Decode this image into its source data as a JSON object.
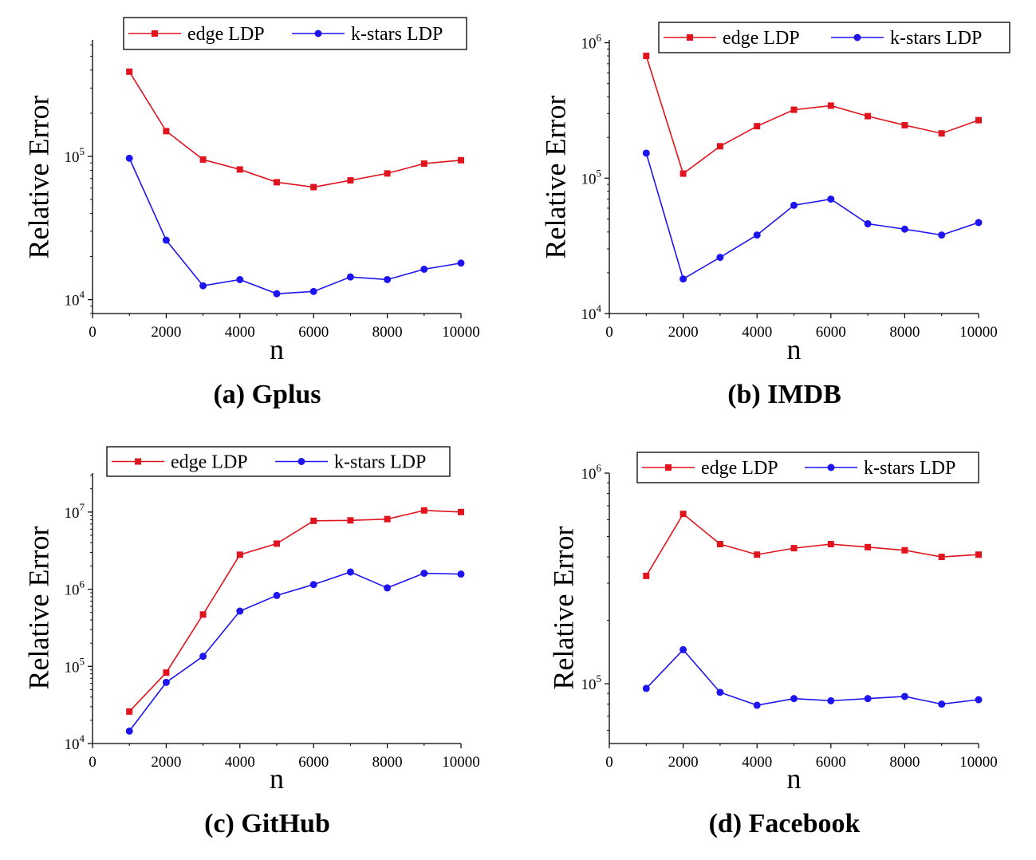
{
  "chart_data": [
    {
      "type": "line",
      "caption": "(a) Gplus",
      "xlabel": "n",
      "ylabel": "Relative Error",
      "yscale": "log",
      "xlim": [
        0,
        10000
      ],
      "ylim": [
        8000,
        650000
      ],
      "xticks": [
        0,
        2000,
        4000,
        6000,
        8000,
        10000
      ],
      "ytick_exponents": [
        4,
        5
      ],
      "grid": false,
      "legend": "top",
      "x": [
        1000,
        2000,
        3000,
        4000,
        5000,
        6000,
        7000,
        8000,
        9000,
        10000
      ],
      "series": [
        {
          "name": "edge LDP",
          "color": "#e0141e",
          "marker": "square",
          "values": [
            390000,
            150000,
            95000,
            81000,
            66000,
            61000,
            68000,
            76000,
            89000,
            94000
          ]
        },
        {
          "name": "k-stars LDP",
          "color": "#1e14f0",
          "marker": "circle",
          "values": [
            97000,
            26000,
            12500,
            13800,
            11000,
            11400,
            14400,
            13800,
            16300,
            18000
          ]
        }
      ]
    },
    {
      "type": "line",
      "caption": "(b) IMDB",
      "xlabel": "n",
      "ylabel": "Relative Error",
      "yscale": "log",
      "xlim": [
        0,
        10000
      ],
      "ylim": [
        10000,
        1050000
      ],
      "xticks": [
        0,
        2000,
        4000,
        6000,
        8000,
        10000
      ],
      "ytick_exponents": [
        4,
        5,
        6
      ],
      "grid": false,
      "legend": "top",
      "x": [
        1000,
        2000,
        3000,
        4000,
        5000,
        6000,
        7000,
        8000,
        9000,
        10000
      ],
      "series": [
        {
          "name": "edge LDP",
          "color": "#e0141e",
          "marker": "square",
          "values": [
            800000,
            108000,
            172000,
            242000,
            320000,
            343000,
            287000,
            246000,
            214000,
            268000
          ]
        },
        {
          "name": "k-stars LDP",
          "color": "#1e14f0",
          "marker": "circle",
          "values": [
            153000,
            18000,
            26000,
            38000,
            63000,
            70000,
            46000,
            42000,
            38000,
            47000
          ]
        }
      ]
    },
    {
      "type": "line",
      "caption": "(c) GitHub",
      "xlabel": "n",
      "ylabel": "Relative Error",
      "yscale": "log",
      "xlim": [
        0,
        10000
      ],
      "ylim": [
        10000,
        32000000
      ],
      "xticks": [
        0,
        2000,
        4000,
        6000,
        8000,
        10000
      ],
      "ytick_exponents": [
        4,
        5,
        6,
        7
      ],
      "grid": false,
      "legend": "top",
      "x": [
        1000,
        2000,
        3000,
        4000,
        5000,
        6000,
        7000,
        8000,
        9000,
        10000
      ],
      "series": [
        {
          "name": "edge LDP",
          "color": "#e0141e",
          "marker": "square",
          "values": [
            26000,
            83000,
            470000,
            2800000,
            3900000,
            7700000,
            7800000,
            8100000,
            10500000,
            10000000
          ]
        },
        {
          "name": "k-stars LDP",
          "color": "#1e14f0",
          "marker": "circle",
          "values": [
            14500,
            62000,
            135000,
            520000,
            830000,
            1150000,
            1670000,
            1040000,
            1610000,
            1570000
          ]
        }
      ]
    },
    {
      "type": "line",
      "caption": "(d) Facebook",
      "xlabel": "n",
      "ylabel": "Relative Error",
      "yscale": "log",
      "xlim": [
        0,
        10000
      ],
      "ylim": [
        52000,
        1000000
      ],
      "xticks": [
        0,
        2000,
        4000,
        6000,
        8000,
        10000
      ],
      "ytick_exponents": [
        5,
        6
      ],
      "grid": false,
      "legend": "top",
      "x": [
        1000,
        2000,
        3000,
        4000,
        5000,
        6000,
        7000,
        8000,
        9000,
        10000
      ],
      "series": [
        {
          "name": "edge LDP",
          "color": "#e0141e",
          "marker": "square",
          "values": [
            325000,
            640000,
            460000,
            410000,
            440000,
            460000,
            445000,
            430000,
            400000,
            410000
          ]
        },
        {
          "name": "k-stars LDP",
          "color": "#1e14f0",
          "marker": "circle",
          "values": [
            95000,
            145000,
            91000,
            79000,
            85000,
            83000,
            85000,
            87000,
            80000,
            84000
          ]
        }
      ]
    }
  ]
}
